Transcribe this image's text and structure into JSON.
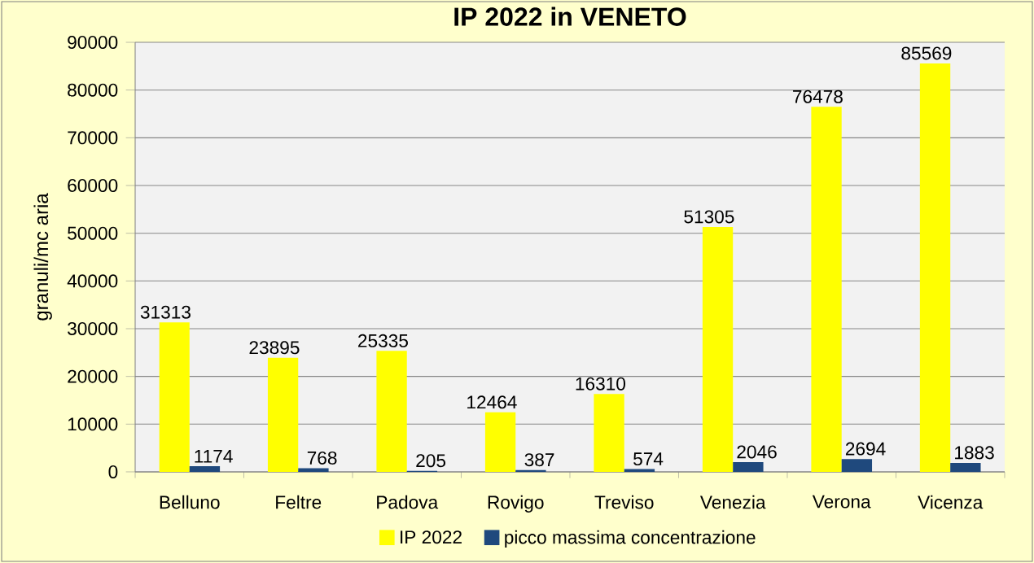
{
  "chart_data": {
    "type": "bar",
    "title": "IP 2022 in VENETO",
    "ylabel": "granuli/mc aria",
    "categories": [
      "Belluno",
      "Feltre",
      "Padova",
      "Rovigo",
      "Treviso",
      "Venezia",
      "Verona",
      "Vicenza"
    ],
    "series": [
      {
        "name": "IP 2022",
        "color": "#ffff00",
        "values": [
          31313,
          23895,
          25335,
          12464,
          16310,
          51305,
          76478,
          85569
        ]
      },
      {
        "name": "picco massima concentrazione",
        "color": "#1f497d",
        "values": [
          1174,
          768,
          205,
          387,
          574,
          2046,
          2694,
          1883
        ]
      }
    ],
    "ylim": [
      0,
      90000
    ],
    "yticks": [
      0,
      10000,
      20000,
      30000,
      40000,
      50000,
      60000,
      70000,
      80000,
      90000
    ],
    "grid": "y",
    "legend": "bottom",
    "data_labels": true
  }
}
